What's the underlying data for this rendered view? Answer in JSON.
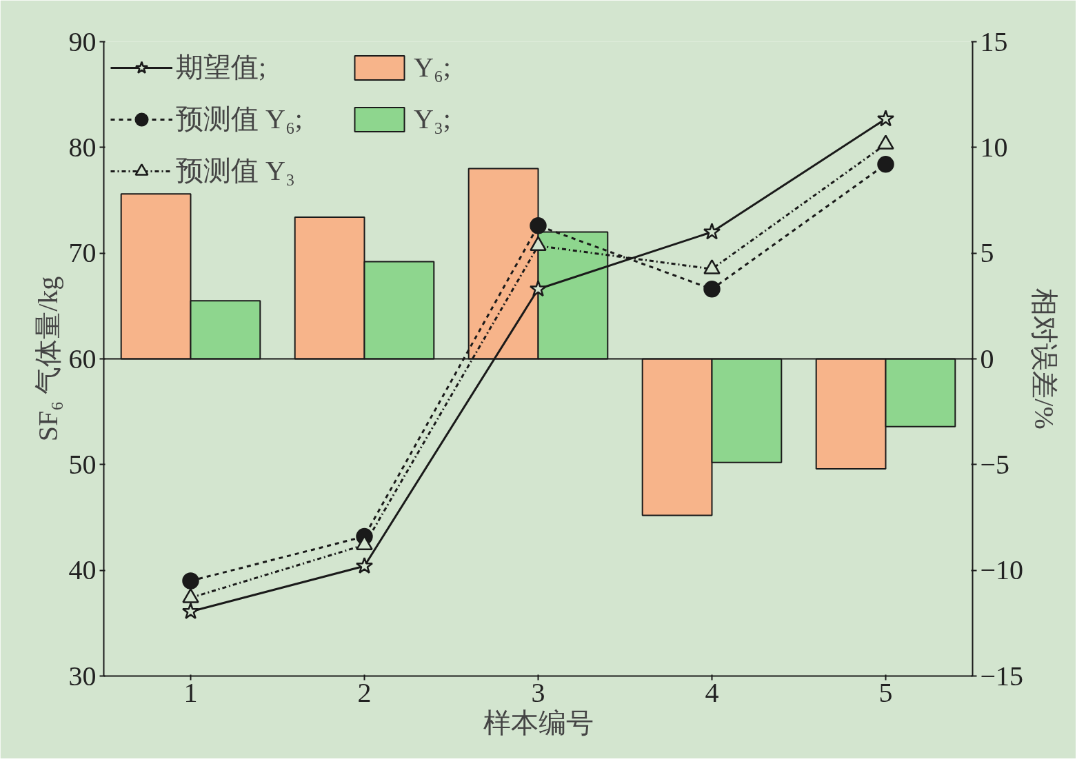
{
  "chart_data": {
    "type": "bar",
    "xlabel": "样本编号",
    "ylabel": "SF₆ 气体量/kg",
    "y2label": "相对误差/%",
    "categories": [
      "1",
      "2",
      "3",
      "4",
      "5"
    ],
    "series": [
      {
        "name": "期望值;",
        "type": "line",
        "color": "#1a1a1a",
        "marker": "star",
        "line_style": "solid",
        "values": [
          36.1,
          40.4,
          66.6,
          72.0,
          82.7
        ]
      },
      {
        "name": "预测值 Y₆;",
        "type": "line",
        "color": "#1a1a1a",
        "marker": "circle",
        "line_style": "dashed",
        "values": [
          39.0,
          43.2,
          72.6,
          66.6,
          78.4
        ]
      },
      {
        "name": "预测值 Y₃",
        "type": "line",
        "color": "#1a1a1a",
        "marker": "triangle",
        "line_style": "dashdot",
        "values": [
          37.4,
          42.4,
          70.7,
          68.5,
          80.3
        ]
      },
      {
        "name": "Y₆;",
        "axis": "y2",
        "color": "#f7b48a",
        "values": [
          7.8,
          6.7,
          9.0,
          -7.4,
          -5.2
        ]
      },
      {
        "name": "Y₃;",
        "axis": "y2",
        "color": "#8ed68e",
        "values": [
          2.75,
          4.6,
          6.0,
          -4.9,
          -3.2
        ]
      }
    ],
    "ylim": [
      30,
      90
    ],
    "yticks": [
      30,
      40,
      50,
      60,
      70,
      80,
      90
    ],
    "y2lim": [
      -15,
      15
    ],
    "y2ticks": [
      {
        "value": -15,
        "label": "−15"
      },
      {
        "value": -10,
        "label": "−10"
      },
      {
        "value": -5,
        "label": "−5"
      },
      0,
      5,
      10,
      15
    ],
    "ref_lines": [
      {
        "axis": "y2",
        "value": 0,
        "color": "#1a1a1a"
      }
    ],
    "grid": false,
    "legend": "top left"
  }
}
